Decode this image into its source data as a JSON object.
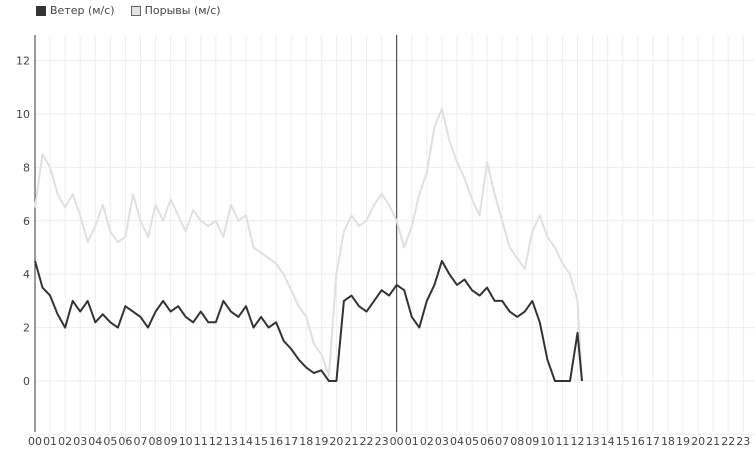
{
  "chart_data": {
    "type": "line",
    "title": "",
    "xlabel": "",
    "ylabel": "",
    "ylim": [
      -2,
      13
    ],
    "y_ticks": [
      "0",
      "2",
      "4",
      "6",
      "8",
      "10",
      "12"
    ],
    "x_ticks": [
      "00",
      "01",
      "02",
      "03",
      "04",
      "05",
      "06",
      "07",
      "08",
      "09",
      "10",
      "11",
      "12",
      "13",
      "14",
      "15",
      "16",
      "17",
      "18",
      "19",
      "20",
      "21",
      "22",
      "23",
      "00",
      "01",
      "02",
      "03",
      "04",
      "05",
      "06",
      "07",
      "08",
      "09",
      "10",
      "11",
      "12",
      "13",
      "14",
      "15",
      "16",
      "17",
      "18",
      "19",
      "20",
      "21",
      "22",
      "23"
    ],
    "x_unit": "hour",
    "day_divider_hour": 24,
    "grid": true,
    "legend_position": "top-left",
    "series": [
      {
        "name": "Ветер (м/с)",
        "color": "#333333",
        "hours": [
          0,
          0.5,
          1,
          1.5,
          2,
          2.5,
          3,
          3.5,
          4,
          4.5,
          5,
          5.5,
          6,
          6.5,
          7,
          7.5,
          8,
          8.5,
          9,
          9.5,
          10,
          10.5,
          11,
          11.5,
          12,
          12.5,
          13,
          13.5,
          14,
          14.5,
          15,
          15.5,
          16,
          16.5,
          17,
          17.5,
          18,
          18.5,
          19,
          19.5,
          20,
          20.5,
          21,
          21.5,
          22,
          22.5,
          23,
          23.5,
          24,
          24.5,
          25,
          25.5,
          26,
          26.5,
          27,
          27.5,
          28,
          28.5,
          29,
          29.5,
          30,
          30.5,
          31,
          31.5,
          32,
          32.5,
          33,
          33.5,
          34,
          34.5,
          35,
          35.5,
          36,
          36.3
        ],
        "values": [
          4.5,
          3.5,
          3.2,
          2.5,
          2.0,
          3.0,
          2.6,
          3.0,
          2.2,
          2.5,
          2.2,
          2.0,
          2.8,
          2.6,
          2.4,
          2.0,
          2.6,
          3.0,
          2.6,
          2.8,
          2.4,
          2.2,
          2.6,
          2.2,
          2.2,
          3.0,
          2.6,
          2.4,
          2.8,
          2.0,
          2.4,
          2.0,
          2.2,
          1.5,
          1.2,
          0.8,
          0.5,
          0.3,
          0.4,
          0.0,
          0.0,
          3.0,
          3.2,
          2.8,
          2.6,
          3.0,
          3.4,
          3.2,
          3.6,
          3.4,
          2.4,
          2.0,
          3.0,
          3.6,
          4.5,
          4.0,
          3.6,
          3.8,
          3.4,
          3.2,
          3.5,
          3.0,
          3.0,
          2.6,
          2.4,
          2.6,
          3.0,
          2.2,
          0.8,
          0.0,
          0.0,
          0.0,
          1.8,
          0.0
        ]
      },
      {
        "name": "Порывы (м/с)",
        "color": "#e0e0e0",
        "hours": [
          0,
          0.5,
          1,
          1.5,
          2,
          2.5,
          3,
          3.5,
          4,
          4.5,
          5,
          5.5,
          6,
          6.5,
          7,
          7.5,
          8,
          8.5,
          9,
          9.5,
          10,
          10.5,
          11,
          11.5,
          12,
          12.5,
          13,
          13.5,
          14,
          14.5,
          15,
          15.5,
          16,
          16.5,
          17,
          17.5,
          18,
          18.5,
          19,
          19.5,
          20,
          20.5,
          21,
          21.5,
          22,
          22.5,
          23,
          23.5,
          24,
          24.5,
          25,
          25.5,
          26,
          26.5,
          27,
          27.5,
          28,
          28.5,
          29,
          29.5,
          30,
          30.5,
          31,
          31.5,
          32,
          32.5,
          33,
          33.5,
          34,
          34.5,
          35,
          35.5,
          36,
          36.3
        ],
        "values": [
          6.5,
          8.5,
          8.0,
          7.0,
          6.5,
          7.0,
          6.2,
          5.2,
          5.8,
          6.6,
          5.6,
          5.2,
          5.4,
          7.0,
          6.0,
          5.4,
          6.6,
          6.0,
          6.8,
          6.2,
          5.6,
          6.4,
          6.0,
          5.8,
          6.0,
          5.4,
          6.6,
          6.0,
          6.2,
          5.0,
          4.8,
          4.6,
          4.4,
          4.0,
          3.4,
          2.8,
          2.4,
          1.4,
          1.0,
          0.2,
          4.0,
          5.6,
          6.2,
          5.8,
          6.0,
          6.6,
          7.0,
          6.6,
          6.0,
          5.0,
          5.8,
          7.0,
          7.8,
          9.5,
          10.2,
          9.0,
          8.2,
          7.6,
          6.8,
          6.2,
          8.2,
          7.0,
          6.0,
          5.0,
          4.6,
          4.2,
          5.6,
          6.2,
          5.4,
          5.0,
          4.4,
          4.0,
          3.0,
          0.0
        ]
      }
    ]
  }
}
